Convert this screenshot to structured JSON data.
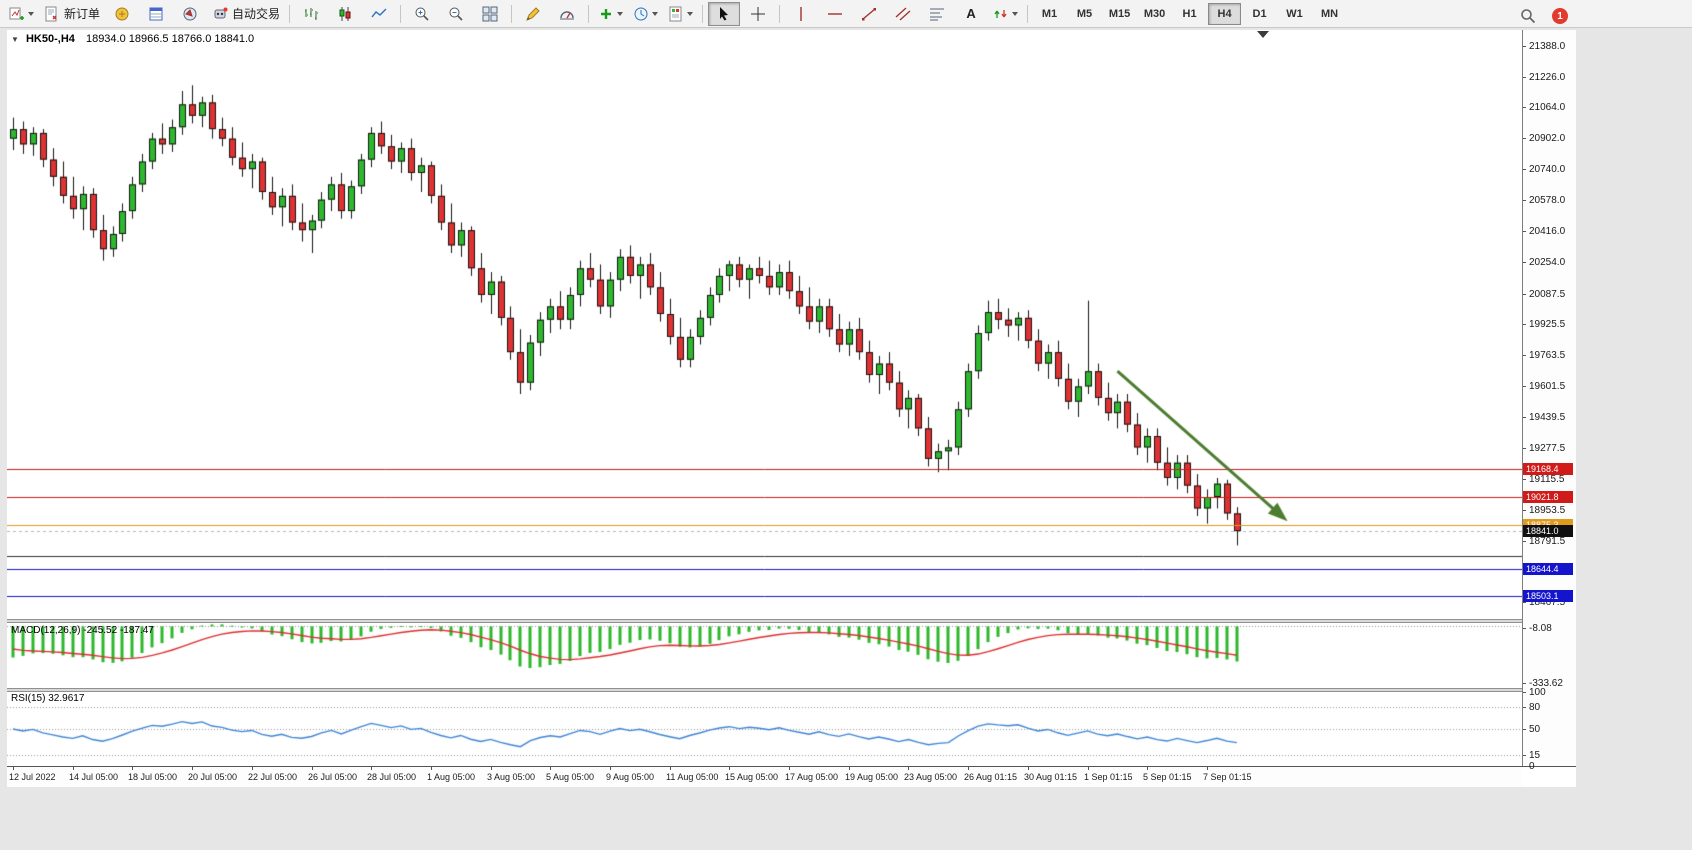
{
  "toolbar": {
    "new_order_label": "新订单",
    "autotrading_label": "自动交易",
    "text_tool_label": "A",
    "notification_badge": "1",
    "timeframes": {
      "items": [
        "M1",
        "M5",
        "M15",
        "M30",
        "H1",
        "H4",
        "D1",
        "W1",
        "MN"
      ],
      "active": "H4"
    }
  },
  "chart": {
    "symbol_period": "HK50-,H4",
    "ohlc": "18934.0 18966.5 18766.0 18841.0",
    "expander": "▼",
    "price_axis_labels": [
      21388.0,
      21226.0,
      21064.0,
      20902.0,
      20740.0,
      20578.0,
      20416.0,
      20254.0,
      20087.5,
      19925.5,
      19763.5,
      19601.5,
      19439.5,
      19277.5,
      19115.5,
      18953.5,
      18791.5,
      18629.5,
      18467.5
    ],
    "hlines": [
      {
        "price": 19168.4,
        "color": "#d11a1a",
        "tag": true
      },
      {
        "price": 19021.8,
        "color": "#d11a1a",
        "tag": true
      },
      {
        "price": 18875.3,
        "color": "#e09a1e",
        "tag": true
      },
      {
        "price": 18712.0,
        "color": "#2f2f2f",
        "tag": false
      },
      {
        "price": 18644.4,
        "color": "#1414cc",
        "tag": true
      },
      {
        "price": 18503.1,
        "color": "#1414cc",
        "tag": true
      }
    ],
    "current_price": {
      "value": 18841.0,
      "tag_color": "#101010"
    },
    "colors": {
      "up": "#2eb82e",
      "down": "#e03232",
      "wick": "#151515",
      "arrow": "#4d7d2f"
    },
    "arrow": {
      "i1": 111,
      "p1": 19680,
      "i2": 127.5,
      "p2": 18920
    },
    "candles": [
      [
        20900,
        21010,
        20840,
        20950
      ],
      [
        20950,
        20990,
        20820,
        20870
      ],
      [
        20870,
        20960,
        20810,
        20930
      ],
      [
        20930,
        20950,
        20750,
        20790
      ],
      [
        20790,
        20850,
        20650,
        20700
      ],
      [
        20700,
        20780,
        20560,
        20600
      ],
      [
        20600,
        20700,
        20480,
        20530
      ],
      [
        20530,
        20650,
        20420,
        20610
      ],
      [
        20610,
        20640,
        20380,
        20420
      ],
      [
        20420,
        20500,
        20260,
        20320
      ],
      [
        20320,
        20440,
        20280,
        20400
      ],
      [
        20400,
        20560,
        20360,
        20520
      ],
      [
        20520,
        20700,
        20480,
        20660
      ],
      [
        20660,
        20820,
        20620,
        20780
      ],
      [
        20780,
        20930,
        20740,
        20900
      ],
      [
        20900,
        20980,
        20820,
        20870
      ],
      [
        20870,
        21000,
        20830,
        20960
      ],
      [
        20960,
        21150,
        20920,
        21080
      ],
      [
        21080,
        21180,
        20980,
        21020
      ],
      [
        21020,
        21120,
        20960,
        21090
      ],
      [
        21090,
        21130,
        20900,
        20950
      ],
      [
        20950,
        21010,
        20860,
        20900
      ],
      [
        20900,
        20960,
        20760,
        20800
      ],
      [
        20800,
        20880,
        20700,
        20740
      ],
      [
        20740,
        20820,
        20640,
        20780
      ],
      [
        20780,
        20800,
        20580,
        20620
      ],
      [
        20620,
        20700,
        20500,
        20540
      ],
      [
        20540,
        20640,
        20440,
        20600
      ],
      [
        20600,
        20660,
        20420,
        20460
      ],
      [
        20460,
        20560,
        20360,
        20420
      ],
      [
        20420,
        20500,
        20300,
        20470
      ],
      [
        20470,
        20620,
        20430,
        20580
      ],
      [
        20580,
        20700,
        20520,
        20660
      ],
      [
        20660,
        20720,
        20480,
        20520
      ],
      [
        20520,
        20680,
        20480,
        20650
      ],
      [
        20650,
        20820,
        20610,
        20790
      ],
      [
        20790,
        20960,
        20750,
        20930
      ],
      [
        20930,
        20990,
        20820,
        20860
      ],
      [
        20860,
        20920,
        20740,
        20780
      ],
      [
        20780,
        20880,
        20720,
        20850
      ],
      [
        20850,
        20900,
        20680,
        20720
      ],
      [
        20720,
        20800,
        20620,
        20760
      ],
      [
        20760,
        20780,
        20560,
        20600
      ],
      [
        20600,
        20660,
        20420,
        20460
      ],
      [
        20460,
        20560,
        20300,
        20340
      ],
      [
        20340,
        20460,
        20280,
        20420
      ],
      [
        20420,
        20440,
        20180,
        20220
      ],
      [
        20220,
        20300,
        20040,
        20080
      ],
      [
        20080,
        20200,
        19980,
        20150
      ],
      [
        20150,
        20180,
        19920,
        19960
      ],
      [
        19960,
        20020,
        19740,
        19780
      ],
      [
        19780,
        19900,
        19560,
        19620
      ],
      [
        19620,
        19870,
        19580,
        19830
      ],
      [
        19830,
        19990,
        19760,
        19950
      ],
      [
        19950,
        20060,
        19880,
        20020
      ],
      [
        20020,
        20100,
        19900,
        19950
      ],
      [
        19950,
        20120,
        19900,
        20080
      ],
      [
        20080,
        20260,
        20020,
        20220
      ],
      [
        20220,
        20300,
        20120,
        20160
      ],
      [
        20160,
        20240,
        19980,
        20020
      ],
      [
        20020,
        20200,
        19960,
        20160
      ],
      [
        20160,
        20320,
        20100,
        20280
      ],
      [
        20280,
        20340,
        20140,
        20180
      ],
      [
        20180,
        20280,
        20060,
        20240
      ],
      [
        20240,
        20300,
        20080,
        20120
      ],
      [
        20120,
        20200,
        19940,
        19980
      ],
      [
        19980,
        20060,
        19820,
        19860
      ],
      [
        19860,
        19960,
        19700,
        19740
      ],
      [
        19740,
        19900,
        19700,
        19860
      ],
      [
        19860,
        20000,
        19820,
        19960
      ],
      [
        19960,
        20120,
        19920,
        20080
      ],
      [
        20080,
        20220,
        20040,
        20180
      ],
      [
        20180,
        20260,
        20100,
        20240
      ],
      [
        20240,
        20280,
        20120,
        20160
      ],
      [
        20160,
        20240,
        20060,
        20220
      ],
      [
        20220,
        20280,
        20140,
        20180
      ],
      [
        20180,
        20260,
        20080,
        20120
      ],
      [
        20120,
        20240,
        20080,
        20200
      ],
      [
        20200,
        20260,
        20060,
        20100
      ],
      [
        20100,
        20180,
        19980,
        20020
      ],
      [
        20020,
        20120,
        19900,
        19940
      ],
      [
        19940,
        20060,
        19880,
        20020
      ],
      [
        20020,
        20060,
        19860,
        19900
      ],
      [
        19900,
        19980,
        19780,
        19820
      ],
      [
        19820,
        19940,
        19760,
        19900
      ],
      [
        19900,
        19960,
        19740,
        19780
      ],
      [
        19780,
        19840,
        19620,
        19660
      ],
      [
        19660,
        19760,
        19560,
        19720
      ],
      [
        19720,
        19780,
        19580,
        19620
      ],
      [
        19620,
        19680,
        19440,
        19480
      ],
      [
        19480,
        19580,
        19380,
        19540
      ],
      [
        19540,
        19560,
        19340,
        19380
      ],
      [
        19380,
        19440,
        19180,
        19220
      ],
      [
        19220,
        19300,
        19150,
        19260
      ],
      [
        19260,
        19320,
        19160,
        19280
      ],
      [
        19280,
        19520,
        19240,
        19480
      ],
      [
        19480,
        19720,
        19440,
        19680
      ],
      [
        19680,
        19920,
        19640,
        19880
      ],
      [
        19880,
        20050,
        19840,
        19990
      ],
      [
        19990,
        20060,
        19900,
        19950
      ],
      [
        19950,
        20010,
        19860,
        19920
      ],
      [
        19920,
        19990,
        19840,
        19960
      ],
      [
        19960,
        20000,
        19800,
        19840
      ],
      [
        19840,
        19900,
        19680,
        19720
      ],
      [
        19720,
        19820,
        19640,
        19780
      ],
      [
        19780,
        19840,
        19600,
        19640
      ],
      [
        19640,
        19720,
        19480,
        19520
      ],
      [
        19520,
        19640,
        19440,
        19600
      ],
      [
        19600,
        20050,
        19560,
        19680
      ],
      [
        19680,
        19720,
        19500,
        19540
      ],
      [
        19540,
        19620,
        19420,
        19460
      ],
      [
        19460,
        19560,
        19380,
        19520
      ],
      [
        19520,
        19560,
        19360,
        19400
      ],
      [
        19400,
        19460,
        19240,
        19280
      ],
      [
        19280,
        19380,
        19200,
        19340
      ],
      [
        19340,
        19380,
        19160,
        19200
      ],
      [
        19200,
        19280,
        19080,
        19120
      ],
      [
        19120,
        19240,
        19060,
        19200
      ],
      [
        19200,
        19240,
        19040,
        19080
      ],
      [
        19080,
        19140,
        18920,
        18960
      ],
      [
        18960,
        19060,
        18880,
        19020
      ],
      [
        19020,
        19120,
        18960,
        19090
      ],
      [
        19090,
        19110,
        18900,
        18934
      ],
      [
        18934,
        18966.5,
        18766,
        18841
      ]
    ],
    "time_labels": [
      [
        "12 Jul 2022",
        0
      ],
      [
        "14 Jul 05:00",
        6
      ],
      [
        "18 Jul 05:00",
        12
      ],
      [
        "20 Jul 05:00",
        18
      ],
      [
        "22 Jul 05:00",
        24
      ],
      [
        "26 Jul 05:00",
        30
      ],
      [
        "28 Jul 05:00",
        36
      ],
      [
        "1 Aug 05:00",
        42
      ],
      [
        "3 Aug 05:00",
        48
      ],
      [
        "5 Aug 05:00",
        54
      ],
      [
        "9 Aug 05:00",
        60
      ],
      [
        "11 Aug 05:00",
        66
      ],
      [
        "15 Aug 05:00",
        72
      ],
      [
        "17 Aug 05:00",
        78
      ],
      [
        "19 Aug 05:00",
        84
      ],
      [
        "23 Aug 05:00",
        90
      ],
      [
        "26 Aug 01:15",
        96
      ],
      [
        "30 Aug 01:15",
        102
      ],
      [
        "1 Sep 01:15",
        108
      ],
      [
        "5 Sep 01:15",
        114
      ],
      [
        "7 Sep 01:15",
        120
      ]
    ]
  },
  "macd": {
    "caption": "MACD(12,26,9) -245.52 -187.47",
    "axis_labels": [
      -8.08,
      -333.62
    ],
    "hist_color": "#2db82d",
    "signal_color": "#dd2f2f"
  },
  "rsi": {
    "caption": "RSI(15) 32.9617",
    "axis_labels": [
      100,
      80,
      50,
      15,
      0
    ],
    "levels": [
      80,
      50,
      15
    ],
    "line_color": "#3f85d6"
  }
}
